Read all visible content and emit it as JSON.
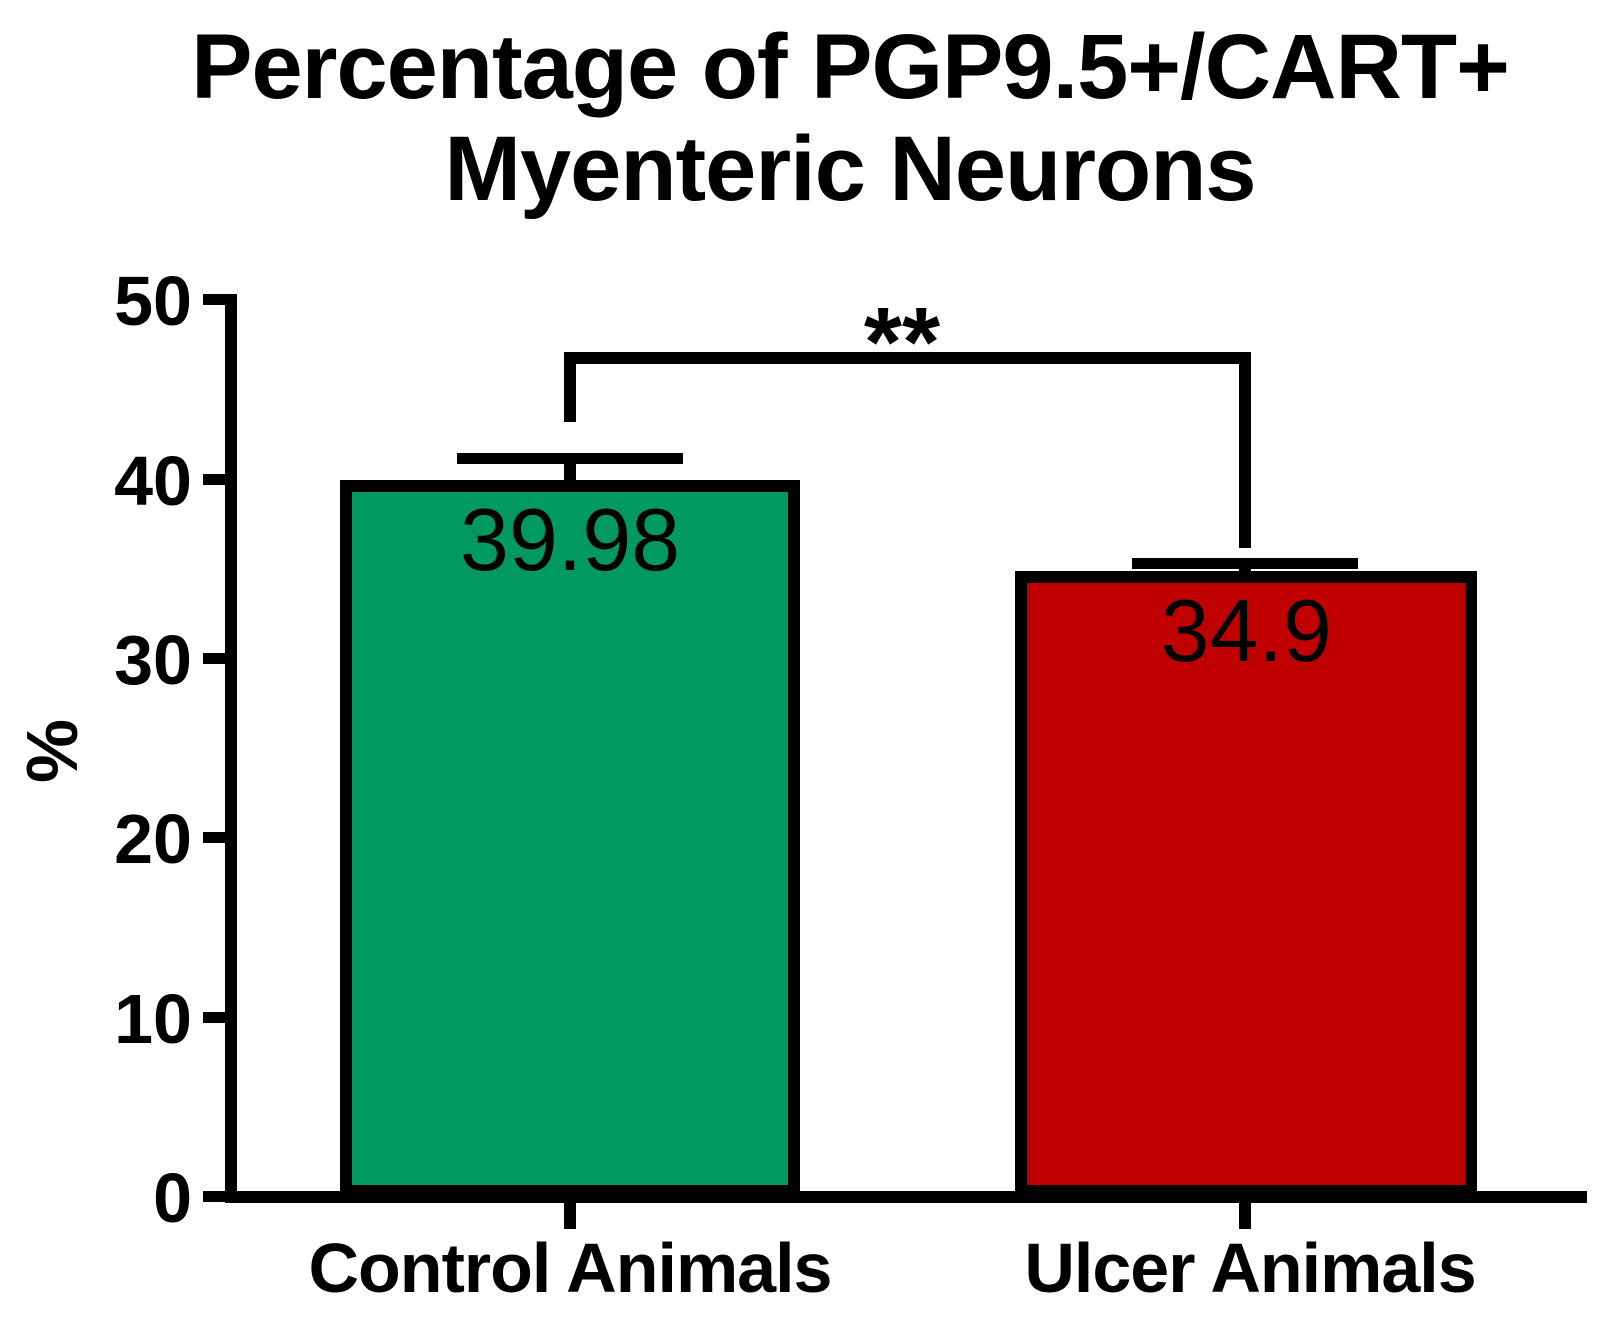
{
  "chart_data": {
    "type": "bar",
    "title": "Percentage of PGP9.5+/CART+ Myenteric Neurons",
    "title_line1": "Percentage of PGP9.5+/CART+",
    "title_line2": "Myenteric Neurons",
    "ylabel": "%",
    "ylim": [
      0,
      50
    ],
    "yticks": [
      0,
      10,
      20,
      30,
      40,
      50
    ],
    "ytick_labels_top_to_bottom": [
      "50",
      "40",
      "30",
      "20",
      "10",
      "0"
    ],
    "categories": [
      "Control Animals",
      "Ulcer Animals"
    ],
    "values": [
      39.98,
      34.9
    ],
    "value_labels": [
      "39.98",
      "34.9"
    ],
    "errors_upper": [
      1.2,
      0.4
    ],
    "bar_colors": [
      "#009A60",
      "#C00000"
    ],
    "axis_color": "#000000",
    "background": "#FFFFFF",
    "grid": false,
    "legend": "none",
    "significance": {
      "label": "**",
      "between": [
        "Control Animals",
        "Ulcer Animals"
      ]
    }
  }
}
